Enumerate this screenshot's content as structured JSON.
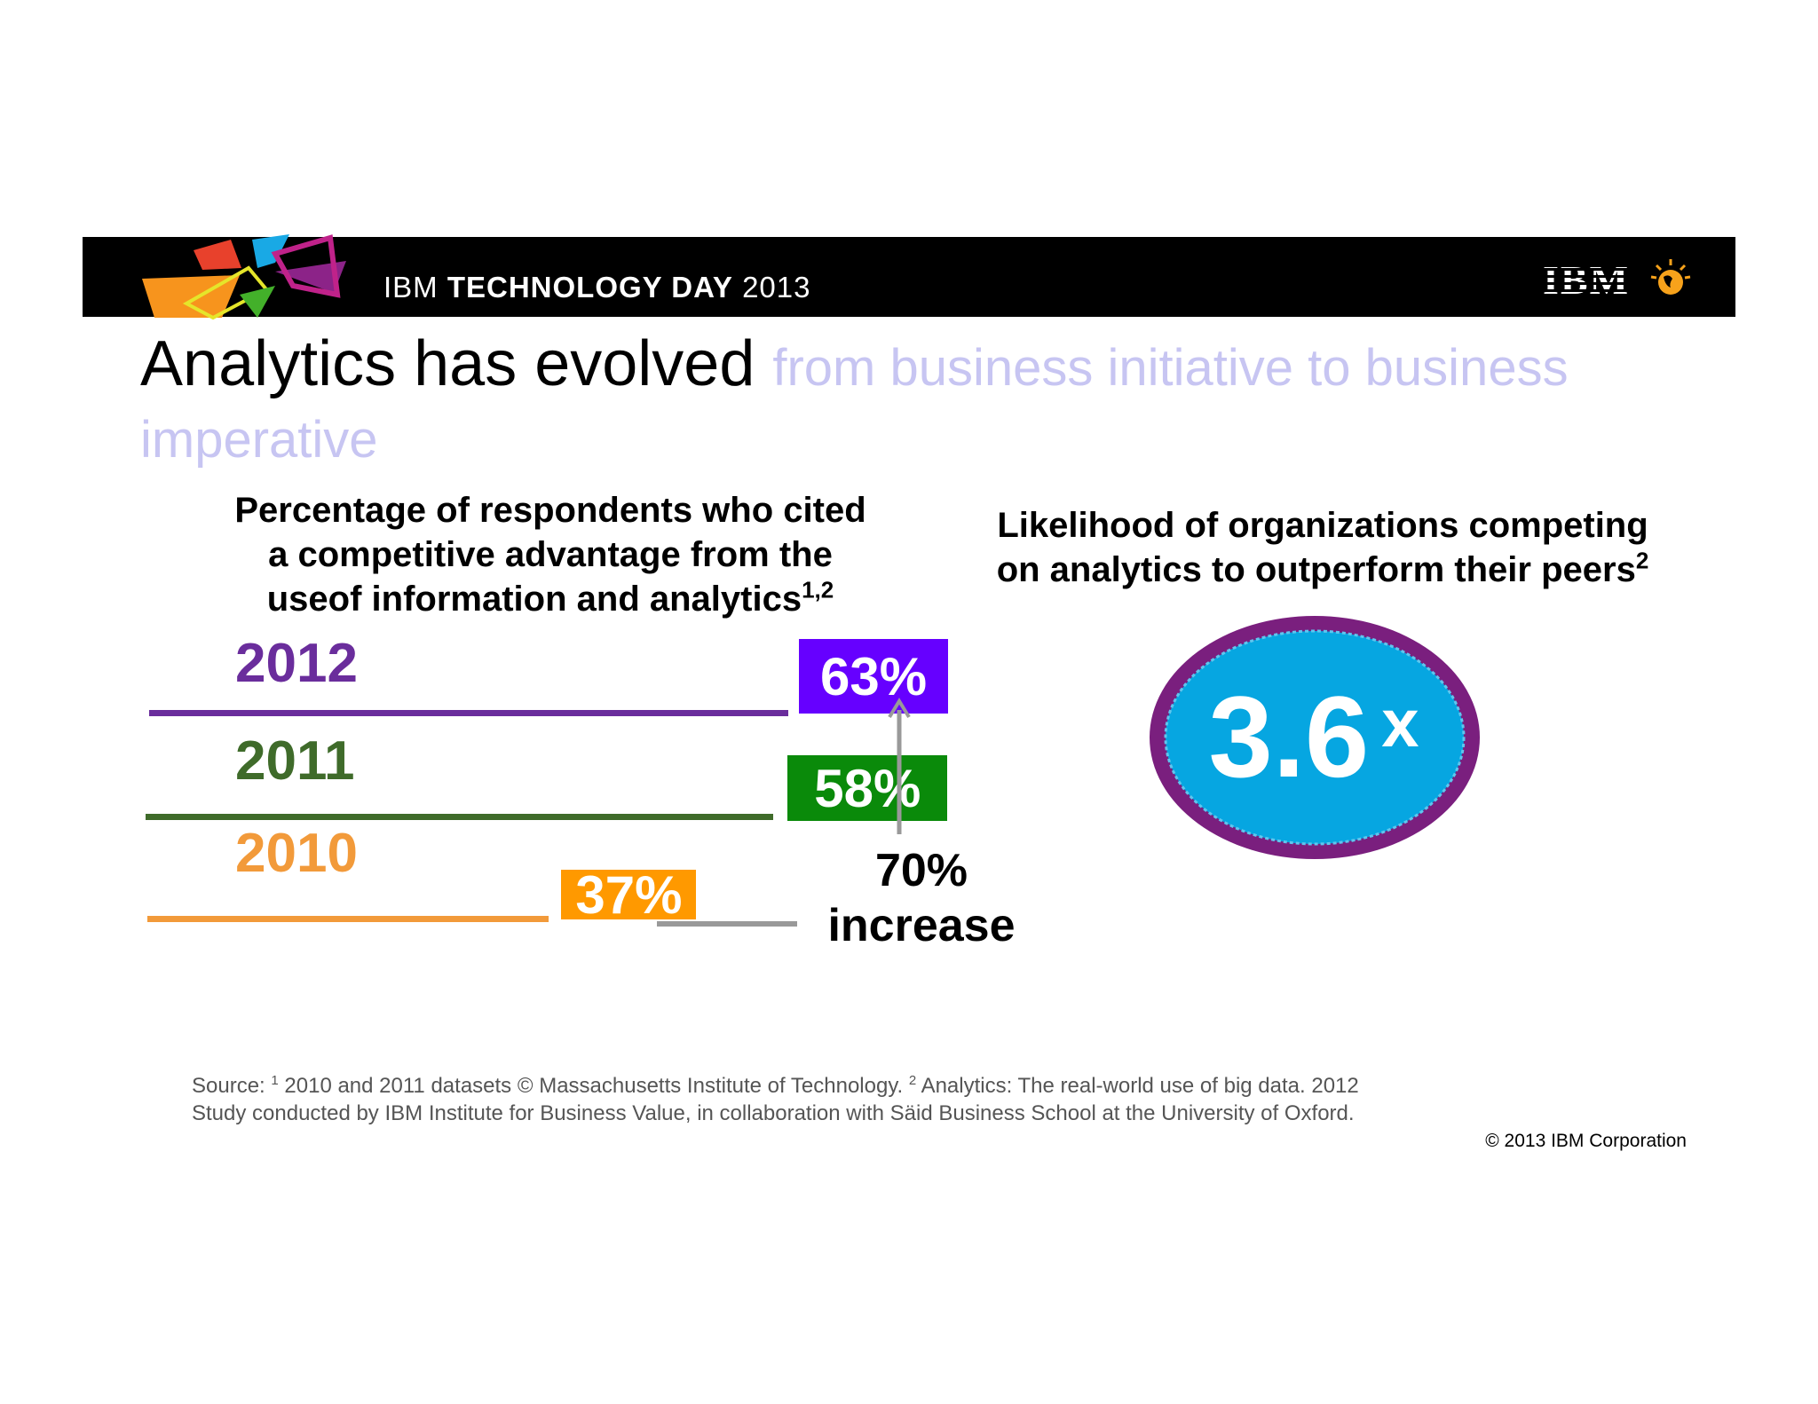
{
  "header": {
    "brand_prefix": "IBM ",
    "brand_bold": "TECHNOLOGY DAY",
    "brand_year": " 2013",
    "logo_text": "IBM"
  },
  "title": {
    "main": "Analytics has evolved ",
    "sub": "from business initiative to business imperative"
  },
  "left_chart": {
    "heading_line1": "Percentage of respondents who cited",
    "heading_line2": "a competitive advantage from the",
    "heading_line3": "useof information and analytics",
    "heading_sup": "1,2"
  },
  "right_chart": {
    "heading_line1": "Likelihood of organizations competing",
    "heading_line2": "on analytics to outperform their peers",
    "heading_sup": "2",
    "value": "3.6",
    "unit": "x"
  },
  "increase": {
    "line1": "70%",
    "line2": "increase"
  },
  "chart_data": {
    "type": "bar",
    "title": "Percentage of respondents who cited a competitive advantage from the useof information and analytics",
    "categories": [
      "2012",
      "2011",
      "2010"
    ],
    "values": [
      63,
      58,
      37
    ],
    "labels": [
      "63%",
      "58%",
      "37%"
    ],
    "colors": [
      "#6a2d9c",
      "#3f6b2a",
      "#f29a3a"
    ],
    "box_colors": [
      "#6600ff",
      "#0a8a0a",
      "#ff9900"
    ],
    "annotation": "70% increase",
    "xlim": [
      0,
      63
    ]
  },
  "footer": {
    "source_label": "Source: ",
    "sup1": "1",
    "source_part1": " 2010 and 2011 datasets © Massachusetts Institute of Technology. ",
    "sup2": "2",
    "source_part2": " Analytics: The real-world use of big data. 2012",
    "source_line2": "Study conducted by IBM Institute for Business Value, in collaboration with Säid Business School at the University of Oxford.",
    "copyright": "© 2013 IBM Corporation"
  }
}
